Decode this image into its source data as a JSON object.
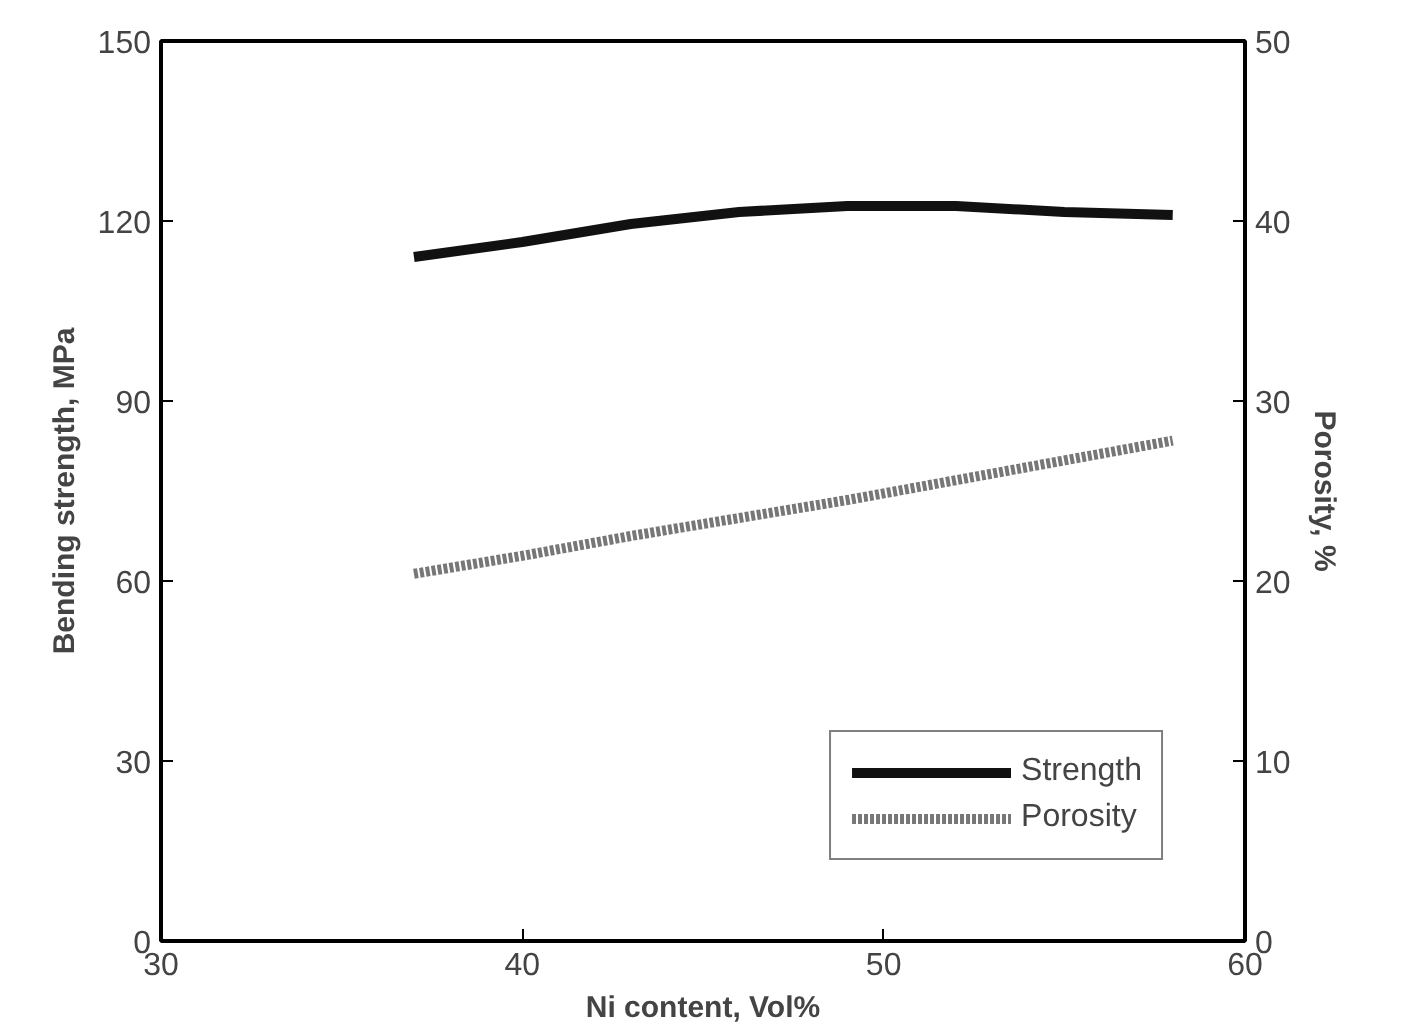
{
  "chart_data": {
    "type": "line",
    "xlabel": "Ni content, Vol%",
    "ylabel": "Bending strength, MPa",
    "y2label": "Porosity, %",
    "xlim": [
      30,
      60
    ],
    "xticks": [
      30,
      40,
      50,
      60
    ],
    "ylim": [
      0,
      150
    ],
    "yticks": [
      0,
      30,
      60,
      90,
      120,
      150
    ],
    "y2lim": [
      0,
      50
    ],
    "y2ticks": [
      0,
      10,
      20,
      30,
      40,
      50
    ],
    "series": [
      {
        "name": "Strength",
        "color": "#111111",
        "x": [
          37,
          40,
          43,
          46,
          49,
          52,
          55,
          58
        ],
        "values": [
          114,
          116.5,
          119.5,
          121.5,
          122.5,
          122.5,
          121.5,
          121
        ]
      },
      {
        "name": "Porosity",
        "color": "#777777",
        "axis": "y2",
        "line_style": "dotted",
        "x": [
          37,
          40,
          43,
          46,
          49,
          52,
          55,
          58
        ],
        "values": [
          20.4,
          21.4,
          22.5,
          23.5,
          24.5,
          25.6,
          26.7,
          27.8
        ]
      }
    ],
    "legend": "bottom right",
    "grid": false
  }
}
